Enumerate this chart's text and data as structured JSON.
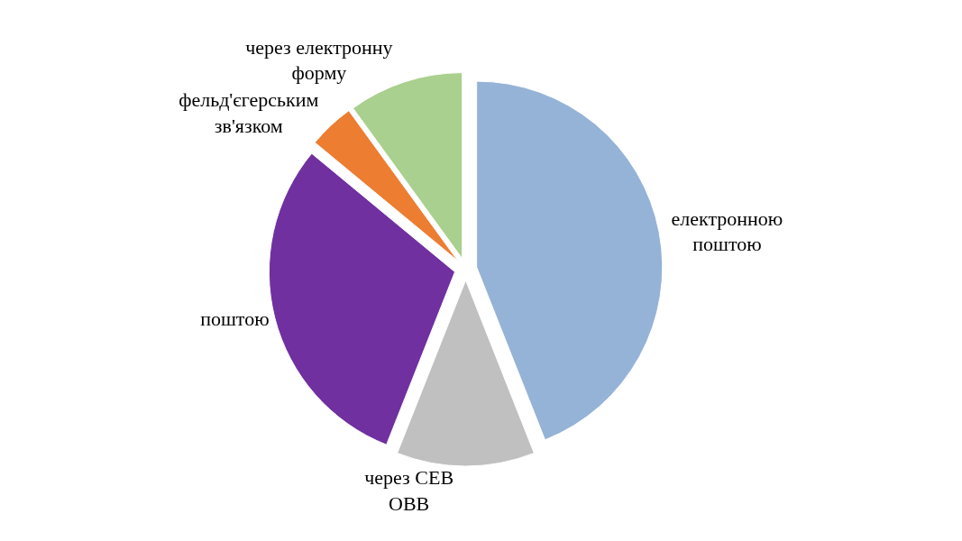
{
  "chart_data": {
    "type": "pie",
    "categories": [
      "електронною\nпоштою",
      "через СЕВ\nОВВ",
      "поштою",
      "фельд'єгерським\nзв'язком",
      "через електронну\nформу"
    ],
    "values": [
      44,
      12,
      30,
      4,
      10
    ],
    "colors": [
      "#95b3d7",
      "#c0c0c0",
      "#7030a0",
      "#ed7d31",
      "#a9d08e"
    ],
    "legend": false
  }
}
